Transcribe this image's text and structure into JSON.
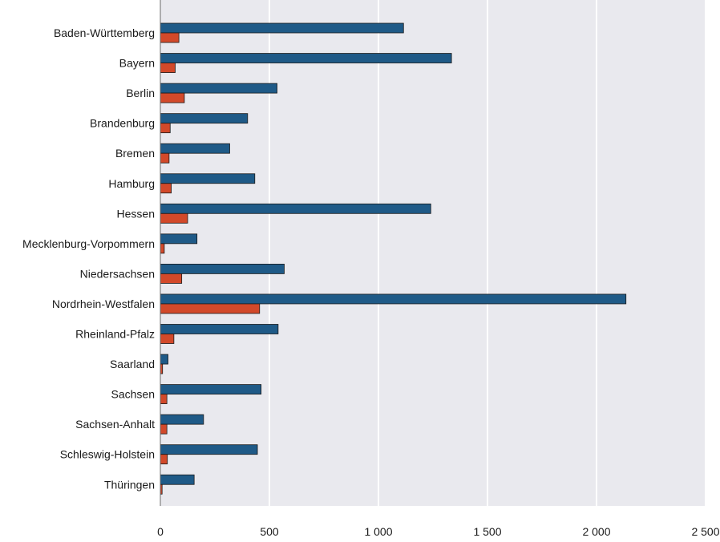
{
  "chart_data": {
    "type": "bar",
    "orientation": "horizontal",
    "categories": [
      "Baden-Württemberg",
      "Bayern",
      "Berlin",
      "Brandenburg",
      "Bremen",
      "Hamburg",
      "Hessen",
      "Mecklenburg-Vorpommern",
      "Niedersachsen",
      "Nordrhein-Westfalen",
      "Rheinland-Pfalz",
      "Saarland",
      "Sachsen",
      "Sachsen-Anhalt",
      "Schleswig-Holstein",
      "Thüringen"
    ],
    "series": [
      {
        "color": "#1f5a87",
        "values": [
          1115,
          1335,
          535,
          400,
          318,
          433,
          1240,
          168,
          568,
          2135,
          540,
          35,
          462,
          198,
          445,
          155
        ]
      },
      {
        "color": "#d2492a",
        "values": [
          85,
          68,
          110,
          45,
          40,
          50,
          125,
          18,
          98,
          455,
          62,
          10,
          30,
          30,
          32,
          8
        ]
      }
    ],
    "xlim": [
      0,
      2500
    ],
    "xticks": [
      0,
      500,
      1000,
      1500,
      2000,
      2500
    ],
    "xtick_labels": [
      "0",
      "500",
      "1 000",
      "1 500",
      "2 000",
      "2 500"
    ],
    "grid": "vertical",
    "background": "#e9e9ee"
  }
}
